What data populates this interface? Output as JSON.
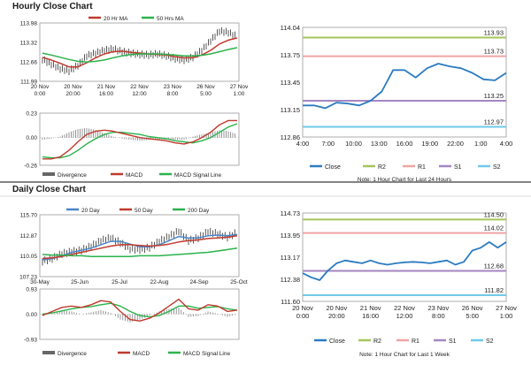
{
  "sections": {
    "hourly_title": "Hourly Close Chart",
    "daily_title": "Daily Close Chart"
  },
  "colors": {
    "price": "#2d2d2d",
    "ma_short": "#c0392b",
    "ma_long": "#2bb24c",
    "ma_mid": "#4a86c8",
    "macd": "#c0392b",
    "signal": "#2bb24c",
    "divergence": "#888888",
    "close": "#2b7bc0",
    "r2": "#a6c65a",
    "r1": "#f1a3a3",
    "s1": "#a486c0",
    "s2": "#6fc9ea"
  },
  "chart_data": [
    {
      "id": "hourly_price",
      "type": "line",
      "title": "Hourly Close Chart",
      "legend": [
        {
          "name": "20 Hr MA",
          "color": "#c0392b"
        },
        {
          "name": "50 Hrs MA",
          "color": "#2bb24c"
        }
      ],
      "y_ticks": [
        "113.98",
        "113.32",
        "112.66",
        "111.99"
      ],
      "ylim": [
        111.99,
        113.98
      ],
      "x_ticks": [
        [
          "20 Nov",
          "0:00"
        ],
        [
          "20 Nov",
          "20:00"
        ],
        [
          "21 Nov",
          "16:00"
        ],
        [
          "22 Nov",
          "12:00"
        ],
        [
          "23 Nov",
          "8:00"
        ],
        [
          "26 Nov",
          "5:00"
        ],
        [
          "27 Nov",
          "1:00"
        ]
      ],
      "series": [
        {
          "name": "Close",
          "values": [
            112.72,
            112.55,
            112.38,
            112.3,
            112.5,
            112.85,
            112.95,
            113.05,
            113.1,
            113.0,
            112.95,
            112.9,
            112.88,
            112.92,
            112.85,
            112.75,
            112.7,
            112.8,
            113.05,
            113.4,
            113.75,
            113.7,
            113.55
          ]
        },
        {
          "name": "20 Hr MA",
          "values": [
            112.8,
            112.7,
            112.58,
            112.45,
            112.45,
            112.6,
            112.78,
            112.92,
            113.0,
            113.02,
            112.98,
            112.95,
            112.92,
            112.9,
            112.88,
            112.82,
            112.78,
            112.78,
            112.88,
            113.05,
            113.28,
            113.42,
            113.5
          ]
        },
        {
          "name": "50 Hrs MA",
          "values": [
            112.95,
            112.88,
            112.8,
            112.72,
            112.65,
            112.63,
            112.65,
            112.7,
            112.78,
            112.85,
            112.9,
            112.92,
            112.92,
            112.92,
            112.9,
            112.88,
            112.85,
            112.85,
            112.87,
            112.92,
            113.0,
            113.08,
            113.15
          ]
        }
      ]
    },
    {
      "id": "hourly_macd",
      "type": "line",
      "y_ticks": [
        "0.23",
        "0.00",
        "-0.26"
      ],
      "ylim": [
        -0.26,
        0.23
      ],
      "legend": [
        {
          "name": "Divergence",
          "color": "#666666"
        },
        {
          "name": "MACD",
          "color": "#c0392b"
        },
        {
          "name": "MACD Signal Line",
          "color": "#2bb24c"
        }
      ],
      "series": [
        {
          "name": "MACD",
          "values": [
            -0.2,
            -0.2,
            -0.18,
            -0.12,
            -0.04,
            0.03,
            0.06,
            0.07,
            0.06,
            0.04,
            0.02,
            0.0,
            -0.01,
            -0.02,
            -0.03,
            -0.05,
            -0.06,
            -0.04,
            0.0,
            0.05,
            0.12,
            0.16,
            0.16
          ]
        },
        {
          "name": "MACD Signal Line",
          "values": [
            -0.18,
            -0.19,
            -0.19,
            -0.17,
            -0.12,
            -0.06,
            -0.01,
            0.03,
            0.05,
            0.05,
            0.04,
            0.03,
            0.01,
            0.0,
            -0.01,
            -0.03,
            -0.04,
            -0.05,
            -0.03,
            0.0,
            0.05,
            0.1,
            0.13
          ]
        },
        {
          "name": "Divergence",
          "values": [
            -0.02,
            -0.01,
            0.01,
            0.05,
            0.08,
            0.09,
            0.07,
            0.04,
            0.01,
            -0.01,
            -0.02,
            -0.03,
            -0.02,
            -0.02,
            -0.02,
            -0.02,
            -0.02,
            0.01,
            0.03,
            0.05,
            0.07,
            0.06,
            0.03
          ]
        }
      ]
    },
    {
      "id": "hourly_levels",
      "type": "line",
      "subtitle": "Note: 1 Hour Chart for Last 24 Hours",
      "y_ticks": [
        "114.04",
        "113.75",
        "113.45",
        "113.15",
        "112.86"
      ],
      "ylim": [
        112.86,
        114.04
      ],
      "x_ticks": [
        "4:00",
        "7:00",
        "10:00",
        "13:00",
        "16:00",
        "19:00",
        "22:00",
        "1:00",
        "4:00"
      ],
      "levels": [
        {
          "name": "R2",
          "value": 113.93,
          "label": "113.93"
        },
        {
          "name": "R1",
          "value": 113.73,
          "label": "113.73"
        },
        {
          "name": "S1",
          "value": 113.25,
          "label": "113.25"
        },
        {
          "name": "S2",
          "value": 112.97,
          "label": "112.97"
        }
      ],
      "legend": [
        "Close",
        "R2",
        "R1",
        "S1",
        "S2"
      ],
      "series": [
        {
          "name": "Close",
          "values": [
            113.2,
            113.2,
            113.17,
            113.23,
            113.22,
            113.2,
            113.25,
            113.35,
            113.58,
            113.58,
            113.5,
            113.6,
            113.65,
            113.62,
            113.6,
            113.55,
            113.48,
            113.47,
            113.55
          ]
        }
      ]
    },
    {
      "id": "daily_price",
      "type": "line",
      "title": "Daily Close Chart",
      "legend": [
        {
          "name": "20 Day",
          "color": "#4a86c8"
        },
        {
          "name": "50 Day",
          "color": "#c0392b"
        },
        {
          "name": "200 Day",
          "color": "#2bb24c"
        }
      ],
      "y_ticks": [
        "115.70",
        "112.87",
        "110.05",
        "107.23"
      ],
      "ylim": [
        107.23,
        115.7
      ],
      "x_ticks": [
        "30-May",
        "25-Jun",
        "25-Jul",
        "22-Aug",
        "24-Sep",
        "25-Oct"
      ],
      "series": [
        {
          "name": "Close",
          "values": [
            109.2,
            109.6,
            110.3,
            110.6,
            110.8,
            111.4,
            112.2,
            112.6,
            111.9,
            111.0,
            110.9,
            111.2,
            112.1,
            112.8,
            113.6,
            112.2,
            112.6,
            113.5,
            113.2,
            112.7,
            113.4
          ]
        },
        {
          "name": "20 Day",
          "values": [
            109.4,
            109.6,
            110.0,
            110.5,
            110.8,
            111.1,
            111.6,
            112.1,
            112.1,
            111.7,
            111.3,
            111.3,
            111.6,
            112.2,
            112.8,
            112.6,
            112.6,
            112.9,
            113.0,
            112.9,
            113.1
          ]
        },
        {
          "name": "50 Day",
          "values": [
            109.6,
            109.7,
            109.9,
            110.2,
            110.5,
            110.8,
            111.1,
            111.4,
            111.6,
            111.6,
            111.5,
            111.4,
            111.5,
            111.7,
            112.0,
            112.2,
            112.3,
            112.5,
            112.6,
            112.7,
            112.9
          ]
        },
        {
          "name": "200 Day",
          "values": [
            110.2,
            110.1,
            110.1,
            110.0,
            110.0,
            109.9,
            109.9,
            109.9,
            109.9,
            109.9,
            110.0,
            110.0,
            110.0,
            110.1,
            110.2,
            110.3,
            110.4,
            110.5,
            110.7,
            110.9,
            111.1
          ]
        }
      ]
    },
    {
      "id": "daily_macd",
      "type": "line",
      "y_ticks": [
        "0.93",
        "0.00",
        "-0.93"
      ],
      "ylim": [
        -0.93,
        0.93
      ],
      "legend": [
        {
          "name": "Divergence",
          "color": "#666666"
        },
        {
          "name": "MACD",
          "color": "#c0392b"
        },
        {
          "name": "MACD Signal Line",
          "color": "#2bb24c"
        }
      ],
      "series": [
        {
          "name": "MACD",
          "values": [
            -0.05,
            0.1,
            0.25,
            0.3,
            0.25,
            0.35,
            0.5,
            0.45,
            0.1,
            -0.2,
            -0.25,
            -0.15,
            0.05,
            0.3,
            0.55,
            0.2,
            0.15,
            0.35,
            0.3,
            0.1,
            0.15
          ]
        },
        {
          "name": "MACD Signal Line",
          "values": [
            0.0,
            0.05,
            0.12,
            0.2,
            0.25,
            0.28,
            0.35,
            0.4,
            0.3,
            0.1,
            -0.05,
            -0.1,
            -0.05,
            0.1,
            0.3,
            0.3,
            0.22,
            0.25,
            0.28,
            0.2,
            0.15
          ]
        },
        {
          "name": "Divergence",
          "values": [
            -0.05,
            0.05,
            0.13,
            0.1,
            0.0,
            0.07,
            0.15,
            0.05,
            -0.2,
            -0.3,
            -0.2,
            -0.05,
            0.1,
            0.2,
            0.25,
            -0.1,
            -0.07,
            0.1,
            0.02,
            -0.1,
            0.0
          ]
        }
      ]
    },
    {
      "id": "daily_levels",
      "type": "line",
      "subtitle": "Note: 1 Hour Chart for Last 1 Week",
      "y_ticks": [
        "114.73",
        "113.95",
        "113.17",
        "112.38",
        "111.60"
      ],
      "ylim": [
        111.6,
        114.73
      ],
      "x_ticks": [
        [
          "20 Nov",
          "0:00"
        ],
        [
          "20 Nov",
          "20:00"
        ],
        [
          "21 Nov",
          "16:00"
        ],
        [
          "22 Nov",
          "12:00"
        ],
        [
          "23 Nov",
          "8:00"
        ],
        [
          "26 Nov",
          "5:00"
        ],
        [
          "27 Nov",
          "1:00"
        ]
      ],
      "levels": [
        {
          "name": "R2",
          "value": 114.5,
          "label": "114.50"
        },
        {
          "name": "R1",
          "value": 114.02,
          "label": "114.02"
        },
        {
          "name": "S1",
          "value": 112.68,
          "label": "112.68"
        },
        {
          "name": "S2",
          "value": 111.82,
          "label": "111.82"
        }
      ],
      "legend": [
        "Close",
        "R2",
        "R1",
        "S1",
        "S2"
      ],
      "series": [
        {
          "name": "Close",
          "values": [
            112.6,
            112.45,
            112.35,
            112.7,
            112.95,
            113.05,
            113.0,
            112.95,
            113.05,
            112.95,
            112.9,
            112.95,
            112.98,
            113.0,
            112.98,
            112.95,
            113.0,
            113.05,
            112.9,
            113.0,
            113.4,
            113.5,
            113.7,
            113.5,
            113.7
          ]
        }
      ]
    }
  ]
}
